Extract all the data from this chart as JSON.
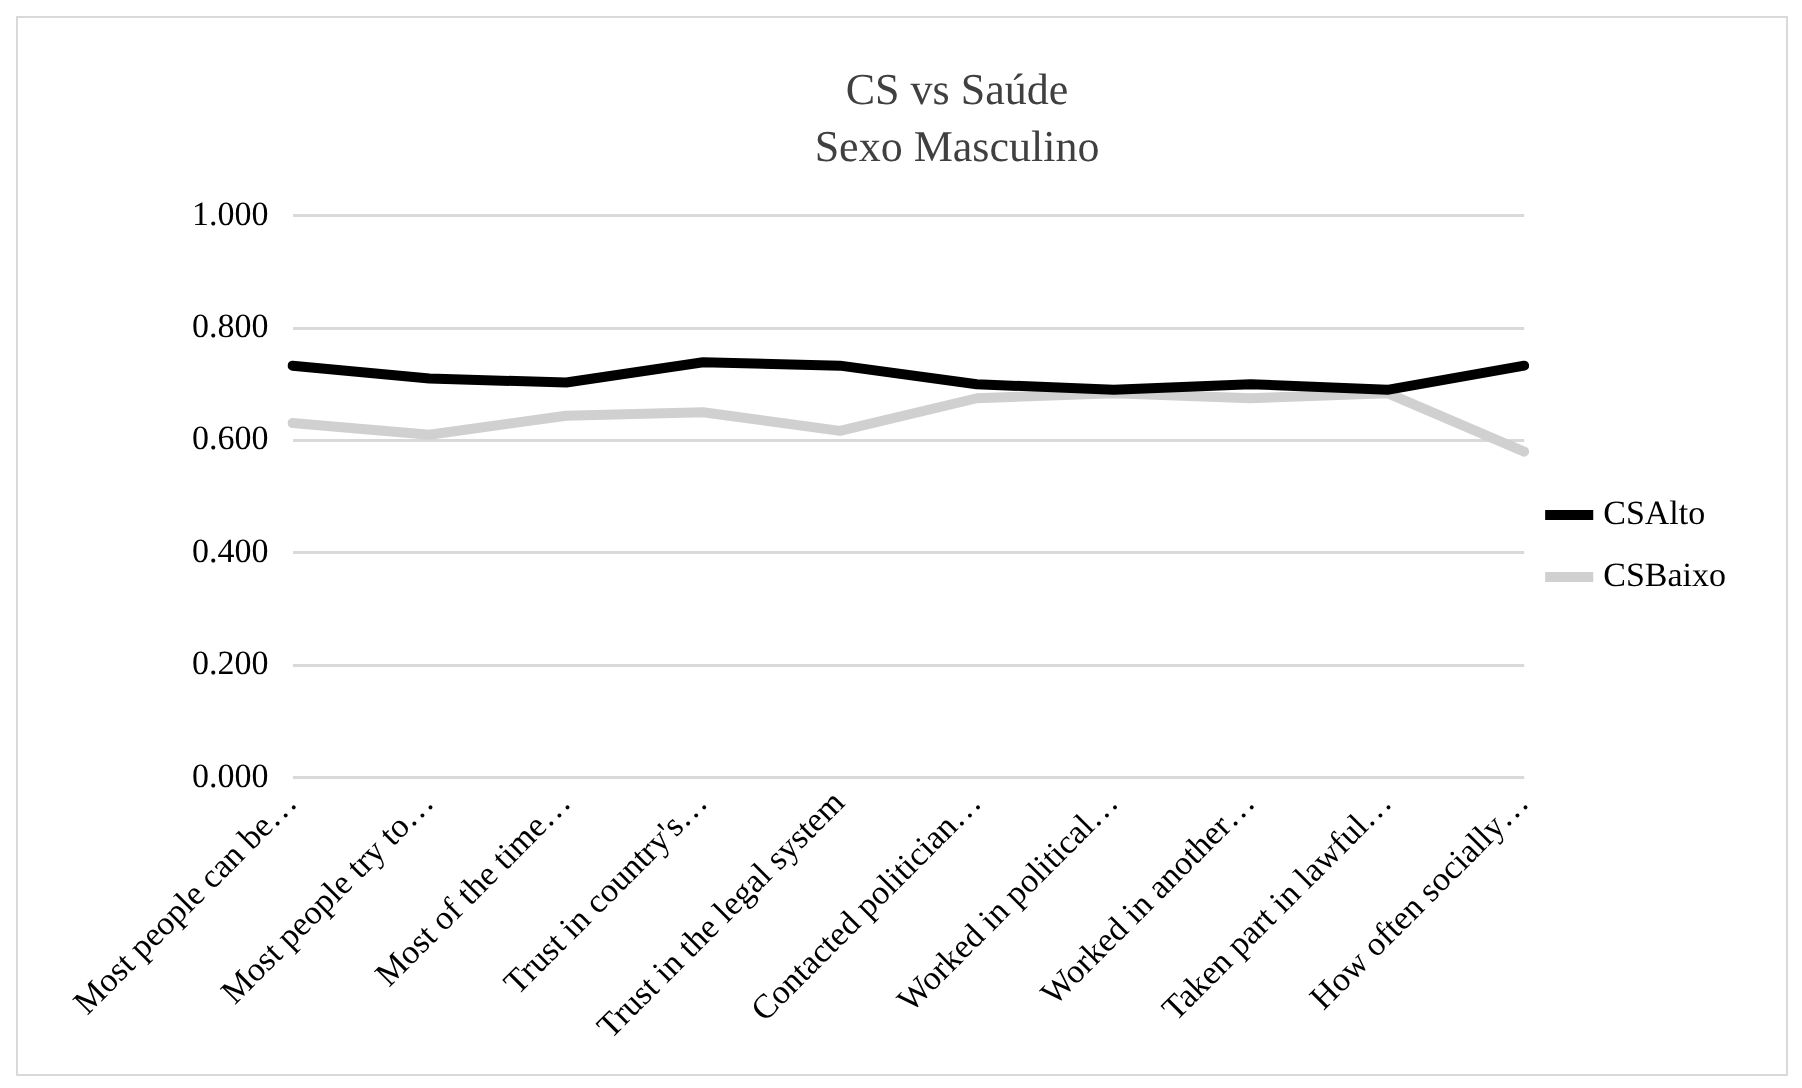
{
  "chart_data": {
    "type": "line",
    "title": "CS vs Saúde",
    "subtitle": "Sexo Masculino",
    "categories": [
      "Most people can be…",
      "Most people try to…",
      "Most of the time…",
      "Trust in country's…",
      "Trust in the legal system",
      "Contacted politician…",
      "Worked in political…",
      "Worked in another…",
      "Taken part in lawful…",
      "How often socially…"
    ],
    "series": [
      {
        "name": "CSAlto",
        "color": "#000000",
        "values": [
          0.733,
          0.71,
          0.703,
          0.739,
          0.733,
          0.7,
          0.69,
          0.7,
          0.69,
          0.733
        ]
      },
      {
        "name": "CSBaixo",
        "color": "#d0d0d0",
        "values": [
          0.631,
          0.61,
          0.644,
          0.65,
          0.617,
          0.675,
          0.684,
          0.675,
          0.684,
          0.58
        ]
      }
    ],
    "ylim": [
      0,
      1
    ],
    "yticks": [
      {
        "value": 0,
        "label": "0.000"
      },
      {
        "value": 0.2,
        "label": "0.200"
      },
      {
        "value": 0.4,
        "label": "0.400"
      },
      {
        "value": 0.6,
        "label": "0.600"
      },
      {
        "value": 0.8,
        "label": "0.800"
      },
      {
        "value": 1,
        "label": "1.000"
      }
    ],
    "grid": "y",
    "legend": "right",
    "marker": "none",
    "line_style": "solid"
  }
}
